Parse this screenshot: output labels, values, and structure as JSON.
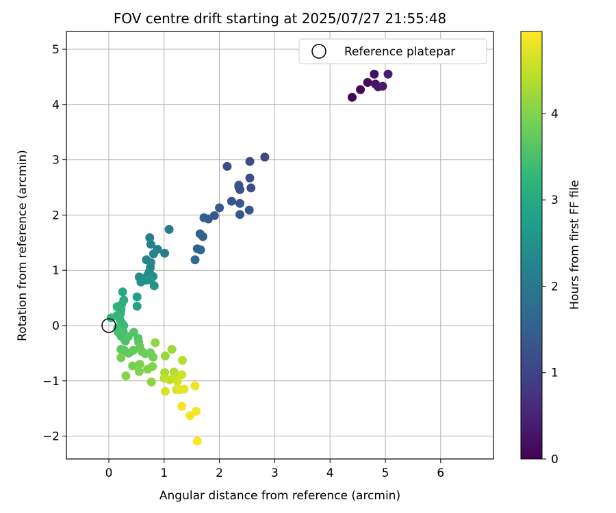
{
  "chart_data": {
    "type": "scatter",
    "title": "FOV centre drift starting at 2025/07/27 21:55:48",
    "xlabel": "Angular distance from reference (arcmin)",
    "ylabel": "Rotation from reference (arcmin)",
    "xlim": [
      -0.8,
      6.9
    ],
    "ylim": [
      -2.4,
      5.3
    ],
    "xticks": [
      0,
      1,
      2,
      3,
      4,
      5,
      6
    ],
    "yticks": [
      -2,
      -1,
      0,
      1,
      2,
      3,
      4,
      5
    ],
    "grid": true,
    "legend": {
      "placement": "top-right",
      "entries": [
        "Reference platepar"
      ]
    },
    "reference": {
      "name": "Reference platepar",
      "x": 0.0,
      "y": 0.0
    },
    "colorbar": {
      "label": "Hours from first FF file",
      "colormap": "viridis",
      "range": [
        0,
        4.95
      ],
      "ticks": [
        0,
        1,
        2,
        3,
        4
      ]
    },
    "points": [
      {
        "x": 4.4,
        "y": 4.13,
        "c": 0.05
      },
      {
        "x": 4.55,
        "y": 4.27,
        "c": 0.1
      },
      {
        "x": 4.68,
        "y": 4.4,
        "c": 0.15
      },
      {
        "x": 4.8,
        "y": 4.55,
        "c": 0.2
      },
      {
        "x": 4.82,
        "y": 4.37,
        "c": 0.25
      },
      {
        "x": 4.87,
        "y": 4.32,
        "c": 0.3
      },
      {
        "x": 4.95,
        "y": 4.33,
        "c": 0.35
      },
      {
        "x": 5.05,
        "y": 4.55,
        "c": 0.4
      },
      {
        "x": 2.82,
        "y": 3.05,
        "c": 1.05
      },
      {
        "x": 2.55,
        "y": 2.97,
        "c": 1.08
      },
      {
        "x": 2.14,
        "y": 2.88,
        "c": 1.12
      },
      {
        "x": 2.55,
        "y": 2.67,
        "c": 1.15
      },
      {
        "x": 2.57,
        "y": 2.49,
        "c": 1.18
      },
      {
        "x": 2.35,
        "y": 2.54,
        "c": 1.2
      },
      {
        "x": 2.37,
        "y": 2.46,
        "c": 1.22
      },
      {
        "x": 2.35,
        "y": 2.51,
        "c": 1.25
      },
      {
        "x": 2.22,
        "y": 2.25,
        "c": 1.28
      },
      {
        "x": 2.37,
        "y": 2.21,
        "c": 1.3
      },
      {
        "x": 2.54,
        "y": 2.09,
        "c": 1.32
      },
      {
        "x": 2.37,
        "y": 2.01,
        "c": 1.35
      },
      {
        "x": 2.0,
        "y": 2.13,
        "c": 1.38
      },
      {
        "x": 1.91,
        "y": 1.99,
        "c": 1.4
      },
      {
        "x": 1.8,
        "y": 1.93,
        "c": 1.45
      },
      {
        "x": 1.72,
        "y": 1.95,
        "c": 1.48
      },
      {
        "x": 1.65,
        "y": 1.66,
        "c": 1.52
      },
      {
        "x": 1.7,
        "y": 1.61,
        "c": 1.55
      },
      {
        "x": 1.6,
        "y": 1.39,
        "c": 1.6
      },
      {
        "x": 1.66,
        "y": 1.37,
        "c": 1.62
      },
      {
        "x": 1.56,
        "y": 1.19,
        "c": 1.68
      },
      {
        "x": 1.09,
        "y": 1.74,
        "c": 2.05
      },
      {
        "x": 1.01,
        "y": 1.31,
        "c": 2.08
      },
      {
        "x": 0.74,
        "y": 1.59,
        "c": 2.12
      },
      {
        "x": 0.76,
        "y": 1.47,
        "c": 2.15
      },
      {
        "x": 0.88,
        "y": 1.38,
        "c": 2.18
      },
      {
        "x": 0.81,
        "y": 1.3,
        "c": 2.22
      },
      {
        "x": 0.68,
        "y": 1.19,
        "c": 2.25
      },
      {
        "x": 0.76,
        "y": 1.14,
        "c": 2.28
      },
      {
        "x": 0.75,
        "y": 1.05,
        "c": 2.3
      },
      {
        "x": 0.73,
        "y": 0.97,
        "c": 2.35
      },
      {
        "x": 0.7,
        "y": 0.91,
        "c": 2.38
      },
      {
        "x": 0.8,
        "y": 0.89,
        "c": 2.42
      },
      {
        "x": 0.55,
        "y": 0.88,
        "c": 2.45
      },
      {
        "x": 0.58,
        "y": 0.79,
        "c": 2.48
      },
      {
        "x": 0.68,
        "y": 0.82,
        "c": 2.5
      },
      {
        "x": 0.75,
        "y": 0.83,
        "c": 2.55
      },
      {
        "x": 0.82,
        "y": 0.72,
        "c": 2.58
      },
      {
        "x": 0.51,
        "y": 0.52,
        "c": 2.8
      },
      {
        "x": 0.51,
        "y": 0.35,
        "c": 2.85
      },
      {
        "x": 0.25,
        "y": 0.61,
        "c": 3.0
      },
      {
        "x": 0.27,
        "y": 0.46,
        "c": 3.05
      },
      {
        "x": 0.23,
        "y": 0.38,
        "c": 3.1
      },
      {
        "x": 0.15,
        "y": 0.34,
        "c": 3.15
      },
      {
        "x": 0.22,
        "y": 0.29,
        "c": 3.18
      },
      {
        "x": 0.21,
        "y": 0.22,
        "c": 3.2
      },
      {
        "x": 0.15,
        "y": 0.18,
        "c": 3.25
      },
      {
        "x": 0.04,
        "y": 0.14,
        "c": 3.28
      },
      {
        "x": 0.2,
        "y": 0.11,
        "c": 3.32
      },
      {
        "x": 0.24,
        "y": 0.04,
        "c": 3.35
      },
      {
        "x": 0.27,
        "y": 0.0,
        "c": 3.38
      },
      {
        "x": 0.16,
        "y": -0.04,
        "c": 3.4
      },
      {
        "x": 0.19,
        "y": -0.08,
        "c": 3.42
      },
      {
        "x": 0.26,
        "y": -0.11,
        "c": 3.45
      },
      {
        "x": 0.17,
        "y": -0.12,
        "c": 3.48
      },
      {
        "x": 0.22,
        "y": -0.19,
        "c": 3.5
      },
      {
        "x": 0.27,
        "y": -0.23,
        "c": 3.52
      },
      {
        "x": 0.3,
        "y": -0.28,
        "c": 3.55
      },
      {
        "x": 0.35,
        "y": -0.2,
        "c": 3.58
      },
      {
        "x": 0.45,
        "y": -0.12,
        "c": 3.6
      },
      {
        "x": 0.53,
        "y": -0.23,
        "c": 3.62
      },
      {
        "x": 0.54,
        "y": -0.3,
        "c": 3.65
      },
      {
        "x": 0.22,
        "y": -0.43,
        "c": 3.68
      },
      {
        "x": 0.28,
        "y": -0.45,
        "c": 3.7
      },
      {
        "x": 0.36,
        "y": -0.5,
        "c": 3.72
      },
      {
        "x": 0.44,
        "y": -0.45,
        "c": 3.75
      },
      {
        "x": 0.56,
        "y": -0.38,
        "c": 3.78
      },
      {
        "x": 0.6,
        "y": -0.47,
        "c": 3.8
      },
      {
        "x": 0.66,
        "y": -0.51,
        "c": 3.82
      },
      {
        "x": 0.75,
        "y": -0.49,
        "c": 3.85
      },
      {
        "x": 0.8,
        "y": -0.57,
        "c": 3.88
      },
      {
        "x": 0.22,
        "y": -0.58,
        "c": 3.9
      },
      {
        "x": 0.43,
        "y": -0.73,
        "c": 3.92
      },
      {
        "x": 0.56,
        "y": -0.7,
        "c": 3.95
      },
      {
        "x": 0.55,
        "y": -0.83,
        "c": 3.98
      },
      {
        "x": 0.7,
        "y": -0.79,
        "c": 4.0
      },
      {
        "x": 0.79,
        "y": -0.74,
        "c": 4.02
      },
      {
        "x": 0.31,
        "y": -0.91,
        "c": 4.05
      },
      {
        "x": 0.77,
        "y": -1.02,
        "c": 4.08
      },
      {
        "x": 0.84,
        "y": -0.31,
        "c": 4.12
      },
      {
        "x": 1.02,
        "y": -0.55,
        "c": 4.18
      },
      {
        "x": 1.14,
        "y": -0.43,
        "c": 4.22
      },
      {
        "x": 1.01,
        "y": -0.85,
        "c": 4.3
      },
      {
        "x": 1.18,
        "y": -0.84,
        "c": 4.35
      },
      {
        "x": 1.33,
        "y": -0.63,
        "c": 4.4
      },
      {
        "x": 1.0,
        "y": -0.95,
        "c": 4.45
      },
      {
        "x": 1.1,
        "y": -0.98,
        "c": 4.5
      },
      {
        "x": 1.22,
        "y": -0.96,
        "c": 4.55
      },
      {
        "x": 1.32,
        "y": -0.89,
        "c": 4.58
      },
      {
        "x": 1.24,
        "y": -1.01,
        "c": 4.62
      },
      {
        "x": 1.02,
        "y": -1.19,
        "c": 4.68
      },
      {
        "x": 1.22,
        "y": -1.16,
        "c": 4.72
      },
      {
        "x": 1.29,
        "y": -1.16,
        "c": 4.75
      },
      {
        "x": 1.36,
        "y": -1.15,
        "c": 4.78
      },
      {
        "x": 1.56,
        "y": -1.09,
        "c": 4.82
      },
      {
        "x": 1.32,
        "y": -1.46,
        "c": 4.85
      },
      {
        "x": 1.47,
        "y": -1.63,
        "c": 4.88
      },
      {
        "x": 1.58,
        "y": -1.55,
        "c": 4.9
      },
      {
        "x": 1.6,
        "y": -2.09,
        "c": 4.95
      }
    ]
  }
}
